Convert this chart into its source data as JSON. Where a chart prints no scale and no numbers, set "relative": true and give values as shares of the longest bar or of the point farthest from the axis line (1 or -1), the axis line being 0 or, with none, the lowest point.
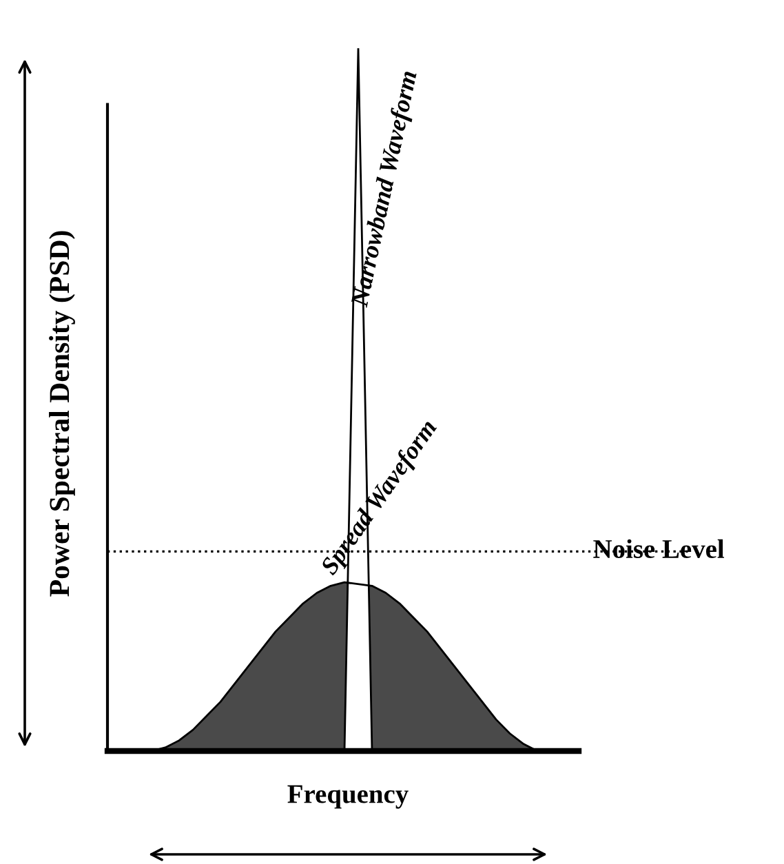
{
  "chart_data": {
    "type": "area",
    "relative": true,
    "xlabel": "Frequency",
    "ylabel": "Power Spectral Density (PSD)",
    "categories": [
      null,
      null,
      null,
      null,
      null,
      null,
      null,
      null,
      null,
      null,
      null,
      null,
      null,
      null,
      null,
      null,
      null,
      null,
      null,
      null,
      null,
      null,
      null,
      null,
      null,
      null,
      null,
      null,
      null,
      null,
      null
    ],
    "series": [
      {
        "color": "#4a4a4a",
        "values": [
          0,
          0,
          0.005,
          0.015,
          0.03,
          0.05,
          0.07,
          0.095,
          0.12,
          0.145,
          0.17,
          0.19,
          0.21,
          0.225,
          0.235,
          0.24,
          null,
          0.235,
          0.225,
          0.21,
          0.19,
          0.17,
          0.145,
          0.12,
          0.095,
          0.07,
          0.045,
          0.025,
          0.01,
          0,
          0
        ]
      },
      {
        "color": "#ffffff",
        "values": [
          null,
          null,
          null,
          null,
          null,
          null,
          null,
          null,
          null,
          null,
          null,
          null,
          null,
          null,
          null,
          0,
          1,
          0,
          null,
          null,
          null,
          null,
          null,
          null,
          null,
          null,
          null,
          null,
          null,
          null,
          null
        ]
      }
    ],
    "annotations": [
      "Narrowband Waveform",
      "Spread Waveform"
    ],
    "ref_lines": [
      {
        "axis": "y",
        "value": 0.284,
        "label": "Noise Level",
        "line_style": "dotted",
        "color": "#000000"
      }
    ]
  }
}
